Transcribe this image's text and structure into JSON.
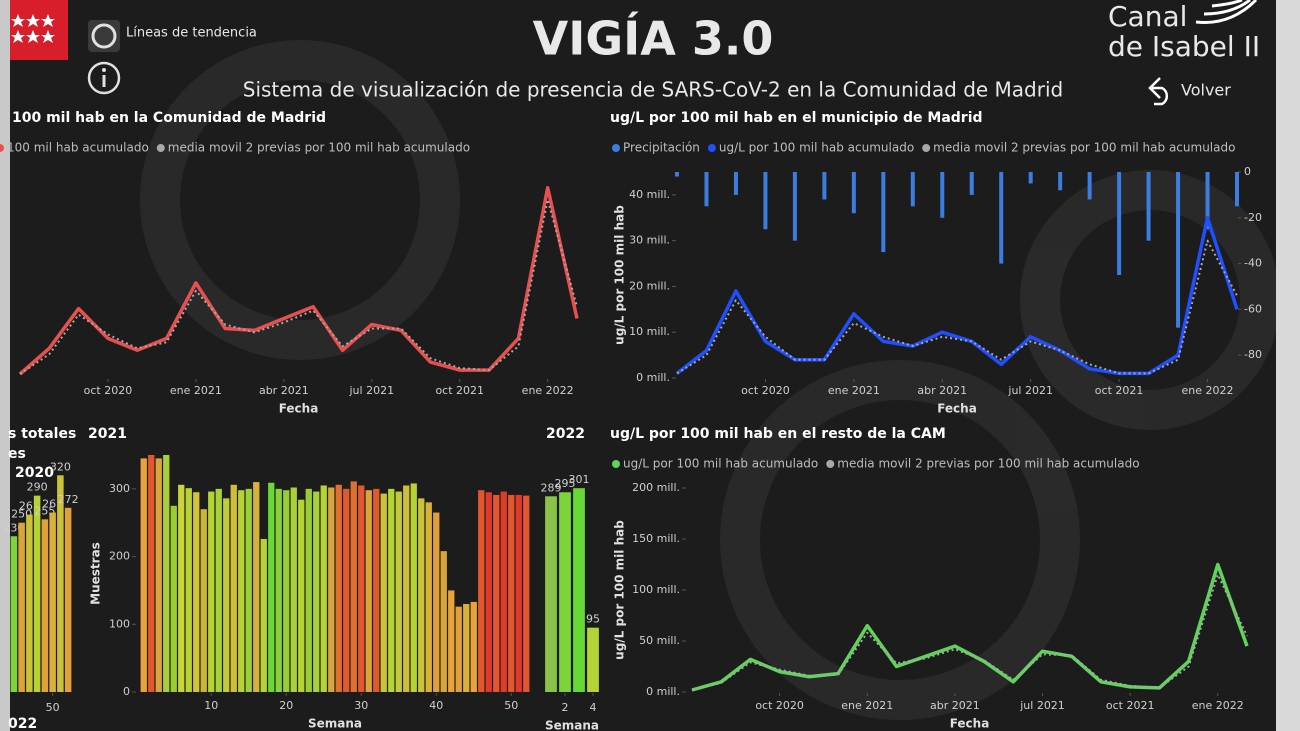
{
  "header": {
    "title": "VIGÍA 3.0",
    "subtitle": "Sistema de visualización de presencia de SARS-CoV-2 en la Comunidad de Madrid",
    "trend_toggle": "Líneas de tendencia",
    "brand_line1": "Canal",
    "brand_line2": "de Isabel II",
    "back": "Volver"
  },
  "side_panel": {
    "title_1": "s totales",
    "title_2": "es",
    "footer": "022"
  },
  "chart_data": [
    {
      "type": "line",
      "title": "100 mil hab en la Comunidad de Madrid",
      "xlabel": "Fecha",
      "x": [
        "2020-07",
        "2020-08",
        "2020-09",
        "2020-10",
        "2020-11",
        "2020-12",
        "2021-01",
        "2021-02",
        "2021-03",
        "2021-04",
        "2021-05",
        "2021-06",
        "2021-07",
        "2021-08",
        "2021-09",
        "2021-10",
        "2021-11",
        "2021-12",
        "2022-01",
        "2022-02"
      ],
      "xticks": [
        {
          "value": "2020-10",
          "label": "oct 2020"
        },
        {
          "value": "2021-01",
          "label": "ene 2021"
        },
        {
          "value": "2021-04",
          "label": "abr 2021"
        },
        {
          "value": "2021-07",
          "label": "jul 2021"
        },
        {
          "value": "2021-10",
          "label": "oct 2021"
        },
        {
          "value": "2022-01",
          "label": "ene 2022"
        }
      ],
      "ylim": [
        0,
        110
      ],
      "legend": true,
      "series": [
        {
          "name": "100 mil hab acumulado",
          "color": "#e8504f",
          "values": [
            2,
            15,
            35,
            20,
            14,
            20,
            48,
            25,
            24,
            30,
            36,
            14,
            27,
            24,
            8,
            4,
            4,
            20,
            96,
            30
          ]
        },
        {
          "name": "media movil 2 previas por 100 mil hab acumulado",
          "color": "#a8a8a8",
          "style": "dotted",
          "values": [
            2,
            12,
            32,
            22,
            15,
            18,
            44,
            27,
            23,
            28,
            34,
            16,
            25,
            25,
            10,
            5,
            4,
            16,
            90,
            36
          ]
        }
      ]
    },
    {
      "type": "line",
      "title": "ug/L por 100 mil hab en el municipio de Madrid",
      "xlabel": "Fecha",
      "ylabel": "ug/L por 100 mil hab",
      "x": [
        "2020-07",
        "2020-08",
        "2020-09",
        "2020-10",
        "2020-11",
        "2020-12",
        "2021-01",
        "2021-02",
        "2021-03",
        "2021-04",
        "2021-05",
        "2021-06",
        "2021-07",
        "2021-08",
        "2021-09",
        "2021-10",
        "2021-11",
        "2021-12",
        "2022-01",
        "2022-02"
      ],
      "xticks": [
        {
          "value": "2020-10",
          "label": "oct 2020"
        },
        {
          "value": "2021-01",
          "label": "ene 2021"
        },
        {
          "value": "2021-04",
          "label": "abr 2021"
        },
        {
          "value": "2021-07",
          "label": "jul 2021"
        },
        {
          "value": "2021-10",
          "label": "oct 2021"
        },
        {
          "value": "2022-01",
          "label": "ene 2022"
        }
      ],
      "ylim": [
        0,
        45000000
      ],
      "yticks": [
        {
          "value": 0,
          "label": "0 mill."
        },
        {
          "value": 10000000,
          "label": "10 mill."
        },
        {
          "value": 20000000,
          "label": "20 mill."
        },
        {
          "value": 30000000,
          "label": "30 mill."
        },
        {
          "value": 40000000,
          "label": "40 mill."
        }
      ],
      "y2lim": [
        -90,
        0
      ],
      "y2ticks": [
        0,
        -20,
        -40,
        -60,
        -80
      ],
      "legend": true,
      "series": [
        {
          "name": "Precipitación",
          "type": "bar",
          "axis": "y2",
          "color": "#3b7de0",
          "values": [
            -2,
            -15,
            -10,
            -25,
            -30,
            -12,
            -18,
            -35,
            -15,
            -20,
            -10,
            -40,
            -5,
            -8,
            -12,
            -45,
            -30,
            -68,
            -25,
            -15
          ]
        },
        {
          "name": "ug/L por 100 mil hab acumulado",
          "color": "#1f4fff",
          "values": [
            1000000,
            6000000,
            19000000,
            8000000,
            4000000,
            4000000,
            14000000,
            8000000,
            7000000,
            10000000,
            8000000,
            3000000,
            9000000,
            6000000,
            2000000,
            1000000,
            1000000,
            5000000,
            35000000,
            15000000
          ]
        },
        {
          "name": "media movil 2 previas por 100 mil hab acumulado",
          "color": "#a8a8a8",
          "style": "dotted",
          "values": [
            1000000,
            5000000,
            17000000,
            9000000,
            4000000,
            4000000,
            12000000,
            9000000,
            7000000,
            9000000,
            8000000,
            4000000,
            8000000,
            6000000,
            3000000,
            1000000,
            1000000,
            4000000,
            30000000,
            18000000
          ]
        }
      ]
    },
    {
      "type": "bar",
      "title": "2020",
      "x": [
        45,
        46,
        47,
        48,
        49,
        50,
        51,
        52
      ],
      "xlim": [
        44.5,
        52.5
      ],
      "xticks": [
        50
      ],
      "ylim": [
        0,
        350
      ],
      "data_labels": true,
      "values": [
        230,
        250,
        262,
        290,
        255,
        265,
        320,
        272
      ],
      "colors": [
        "#7cd33a",
        "#d9a53a",
        "#c9c23a",
        "#b5d334",
        "#e0a03a",
        "#d9b13a",
        "#c9c23a",
        "#e0a03a"
      ]
    },
    {
      "type": "bar",
      "title": "2021",
      "xlabel": "Semana",
      "ylabel": "Muestras",
      "x": [
        1,
        2,
        3,
        4,
        5,
        6,
        7,
        8,
        9,
        10,
        11,
        12,
        13,
        14,
        15,
        16,
        17,
        18,
        19,
        20,
        21,
        22,
        23,
        24,
        25,
        26,
        27,
        28,
        29,
        30,
        31,
        32,
        33,
        34,
        35,
        36,
        37,
        38,
        39,
        40,
        41,
        42,
        43,
        44,
        45,
        46,
        47,
        48,
        49,
        50,
        51,
        52
      ],
      "xlim": [
        0.5,
        52.5
      ],
      "xticks": [
        10,
        20,
        30,
        40,
        50
      ],
      "ylim": [
        0,
        350
      ],
      "yticks": [
        0,
        100,
        200,
        300
      ],
      "data_labels": false,
      "values": [
        345,
        350,
        345,
        350,
        275,
        306,
        301,
        295,
        270,
        296,
        300,
        286,
        306,
        298,
        300,
        310,
        226,
        309,
        300,
        298,
        302,
        284,
        300,
        296,
        305,
        302,
        306,
        300,
        311,
        305,
        298,
        300,
        293,
        300,
        296,
        305,
        308,
        286,
        280,
        265,
        208,
        150,
        126,
        130,
        133,
        298,
        295,
        291,
        296,
        291,
        291,
        290
      ],
      "colors": [
        "#e8a33a",
        "#e4572e",
        "#d9a53a",
        "#a8cf3a",
        "#9acd32",
        "#c9d43a",
        "#b8d236",
        "#d4c23a",
        "#c9b53a",
        "#b5d334",
        "#a9d13a",
        "#c2cc3a",
        "#d0bd3a",
        "#b5d334",
        "#9ccf3a",
        "#d7b23a",
        "#b5d334",
        "#66d936",
        "#8bcf3a",
        "#9acd32",
        "#a9d13a",
        "#b5d334",
        "#9acd32",
        "#a9d13a",
        "#b5d334",
        "#d7a63a",
        "#e0702e",
        "#e05a2b",
        "#e0702e",
        "#e4572e",
        "#d9a53a",
        "#e05a2b",
        "#c9c23a",
        "#b5d334",
        "#c2cc3a",
        "#d0bd3a",
        "#b5d334",
        "#c9c23a",
        "#d9b13a",
        "#e0a03a",
        "#d9a53a",
        "#e8a33a",
        "#e0a03a",
        "#d9b13a",
        "#e8a33a",
        "#e4572e",
        "#e03a2b",
        "#e4572e",
        "#e03a2b",
        "#e4572e",
        "#e03a2b",
        "#e4572e"
      ]
    },
    {
      "type": "bar",
      "title": "2022",
      "xlabel": "Semana",
      "x": [
        1,
        2,
        3,
        4
      ],
      "xlim": [
        0.5,
        4.5
      ],
      "xticks": [
        2,
        4
      ],
      "ylim": [
        0,
        350
      ],
      "data_labels": true,
      "values": [
        289,
        295,
        301,
        95
      ],
      "colors": [
        "#8bc34a",
        "#7cd33a",
        "#66d936",
        "#b5d334"
      ]
    },
    {
      "type": "line",
      "title": "ug/L por 100 mil hab en el resto de la CAM",
      "xlabel": "Fecha",
      "ylabel": "ug/L por 100 mil hab",
      "x": [
        "2020-07",
        "2020-08",
        "2020-09",
        "2020-10",
        "2020-11",
        "2020-12",
        "2021-01",
        "2021-02",
        "2021-03",
        "2021-04",
        "2021-05",
        "2021-06",
        "2021-07",
        "2021-08",
        "2021-09",
        "2021-10",
        "2021-11",
        "2021-12",
        "2022-01",
        "2022-02"
      ],
      "xticks": [
        {
          "value": "2020-10",
          "label": "oct 2020"
        },
        {
          "value": "2021-01",
          "label": "ene 2021"
        },
        {
          "value": "2021-04",
          "label": "abr 2021"
        },
        {
          "value": "2021-07",
          "label": "jul 2021"
        },
        {
          "value": "2021-10",
          "label": "oct 2021"
        },
        {
          "value": "2022-01",
          "label": "ene 2022"
        }
      ],
      "ylim": [
        0,
        200000000
      ],
      "yticks": [
        {
          "value": 0,
          "label": "0 mill."
        },
        {
          "value": 50000000,
          "label": "50 mill."
        },
        {
          "value": 100000000,
          "label": "100 mill."
        },
        {
          "value": 150000000,
          "label": "150 mill."
        },
        {
          "value": 200000000,
          "label": "200 mill."
        }
      ],
      "legend": true,
      "series": [
        {
          "name": "ug/L por 100 mil hab acumulado",
          "color": "#5fd35a",
          "values": [
            2000000,
            10000000,
            32000000,
            20000000,
            15000000,
            18000000,
            65000000,
            25000000,
            35000000,
            45000000,
            30000000,
            10000000,
            40000000,
            35000000,
            10000000,
            5000000,
            4000000,
            30000000,
            125000000,
            45000000
          ]
        },
        {
          "name": "media movil 2 previas por 100 mil hab acumulado",
          "color": "#a8a8a8",
          "style": "dotted",
          "values": [
            2000000,
            9000000,
            29000000,
            22000000,
            16000000,
            17000000,
            58000000,
            28000000,
            33000000,
            42000000,
            31000000,
            12000000,
            37000000,
            36000000,
            12000000,
            6000000,
            4000000,
            25000000,
            115000000,
            55000000
          ]
        }
      ]
    }
  ]
}
